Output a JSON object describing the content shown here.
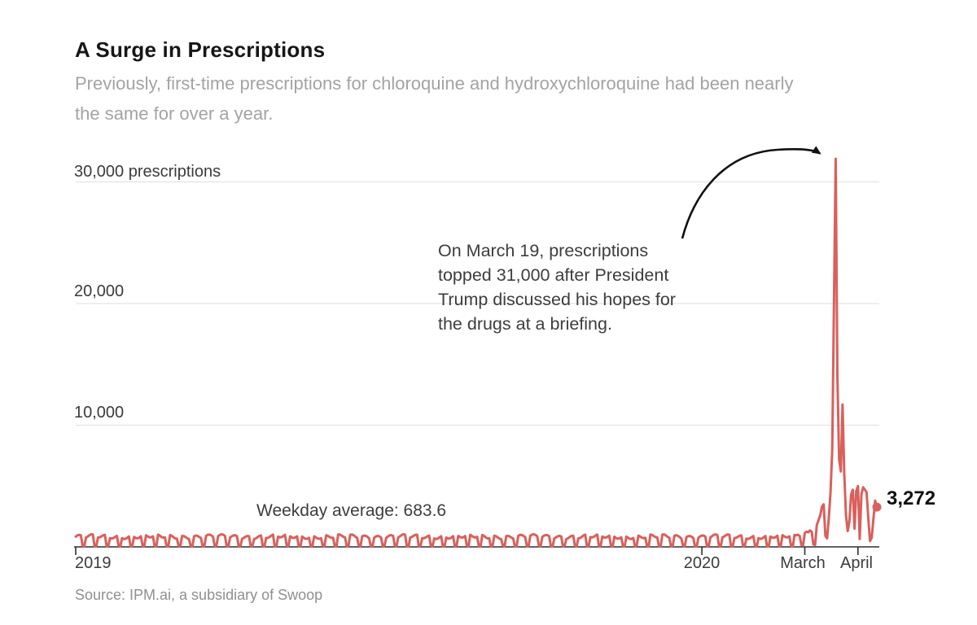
{
  "header": {
    "title": "A Surge in Prescriptions",
    "subtitle_lines": [
      "Previously, first-time prescriptions for chloroquine and hydroxychloroquine had been nearly",
      "the same for over a year."
    ]
  },
  "annotation": {
    "lines": [
      "On March 19, prescriptions",
      "topped 31,000 after President",
      "Trump discussed his hopes for",
      "the drugs at a briefing."
    ]
  },
  "labels": {
    "weekday_average": "Weekday average: 683.6",
    "end_value": "3,272",
    "source": "Source: IPM.ai, a subsidiary of Swoop"
  },
  "colors": {
    "line": "#d9605b",
    "end_dot": "#d9605b",
    "grid": "#e3e3e3",
    "axis": "#2e2e2e",
    "arrow": "#111111",
    "title": "#161616",
    "subtitle": "#a3a3a3",
    "text": "#3d3d3d"
  },
  "chart_data": {
    "type": "line",
    "title": "A Surge in Prescriptions",
    "ylabel": "prescriptions",
    "ylim": [
      0,
      32000
    ],
    "grid": true,
    "y_axis": {
      "ticks": [
        {
          "value": 30000,
          "label": "30,000 prescriptions"
        },
        {
          "value": 20000,
          "label": "20,000"
        },
        {
          "value": 10000,
          "label": "10,000"
        }
      ]
    },
    "x_axis": {
      "total_days": 467,
      "ticks": [
        {
          "day": 0,
          "label": "2019"
        },
        {
          "day": 365,
          "label": "2020"
        },
        {
          "day": 425,
          "label": "March"
        },
        {
          "day": 456,
          "label": "April"
        }
      ]
    },
    "weekday_average": 683.6,
    "peak": {
      "date": "March 19",
      "value": 31900
    },
    "end_value": 3272,
    "baseline": {
      "days": 420,
      "weekday_base": 840,
      "weekday_jitter1": 130,
      "weekday_freq1": 0.83,
      "weekday_jitter2": 70,
      "weekday_freq2": 0.171,
      "weekend_base": 60,
      "weekend_jitter": 35,
      "weekend_freq": 2.1,
      "min_value": 15
    },
    "surge_points": [
      [
        420,
        950
      ],
      [
        421,
        1000
      ],
      [
        422,
        900
      ],
      [
        423,
        160
      ],
      [
        424,
        120
      ],
      [
        425,
        1150
      ],
      [
        426,
        1250
      ],
      [
        427,
        1200
      ],
      [
        428,
        1350
      ],
      [
        429,
        1250
      ],
      [
        430,
        200
      ],
      [
        431,
        160
      ],
      [
        432,
        1800
      ],
      [
        433,
        2200
      ],
      [
        434,
        2600
      ],
      [
        435,
        3300
      ],
      [
        436,
        3500
      ],
      [
        437,
        900
      ],
      [
        438,
        700
      ],
      [
        439,
        2400
      ],
      [
        440,
        4500
      ],
      [
        441,
        8000
      ],
      [
        442,
        20000
      ],
      [
        443,
        31900
      ],
      [
        444,
        14000
      ],
      [
        445,
        7200
      ],
      [
        446,
        6200
      ],
      [
        447,
        11700
      ],
      [
        448,
        6000
      ],
      [
        449,
        2600
      ],
      [
        450,
        1300
      ],
      [
        451,
        2100
      ],
      [
        452,
        4300
      ],
      [
        453,
        4700
      ],
      [
        454,
        1500
      ],
      [
        455,
        4600
      ],
      [
        456,
        5000
      ],
      [
        457,
        650
      ],
      [
        458,
        4300
      ],
      [
        459,
        4900
      ],
      [
        460,
        4700
      ],
      [
        461,
        4500
      ],
      [
        462,
        2400
      ],
      [
        463,
        480
      ],
      [
        464,
        750
      ],
      [
        465,
        2300
      ],
      [
        466,
        3800
      ],
      [
        467,
        3272
      ]
    ]
  }
}
